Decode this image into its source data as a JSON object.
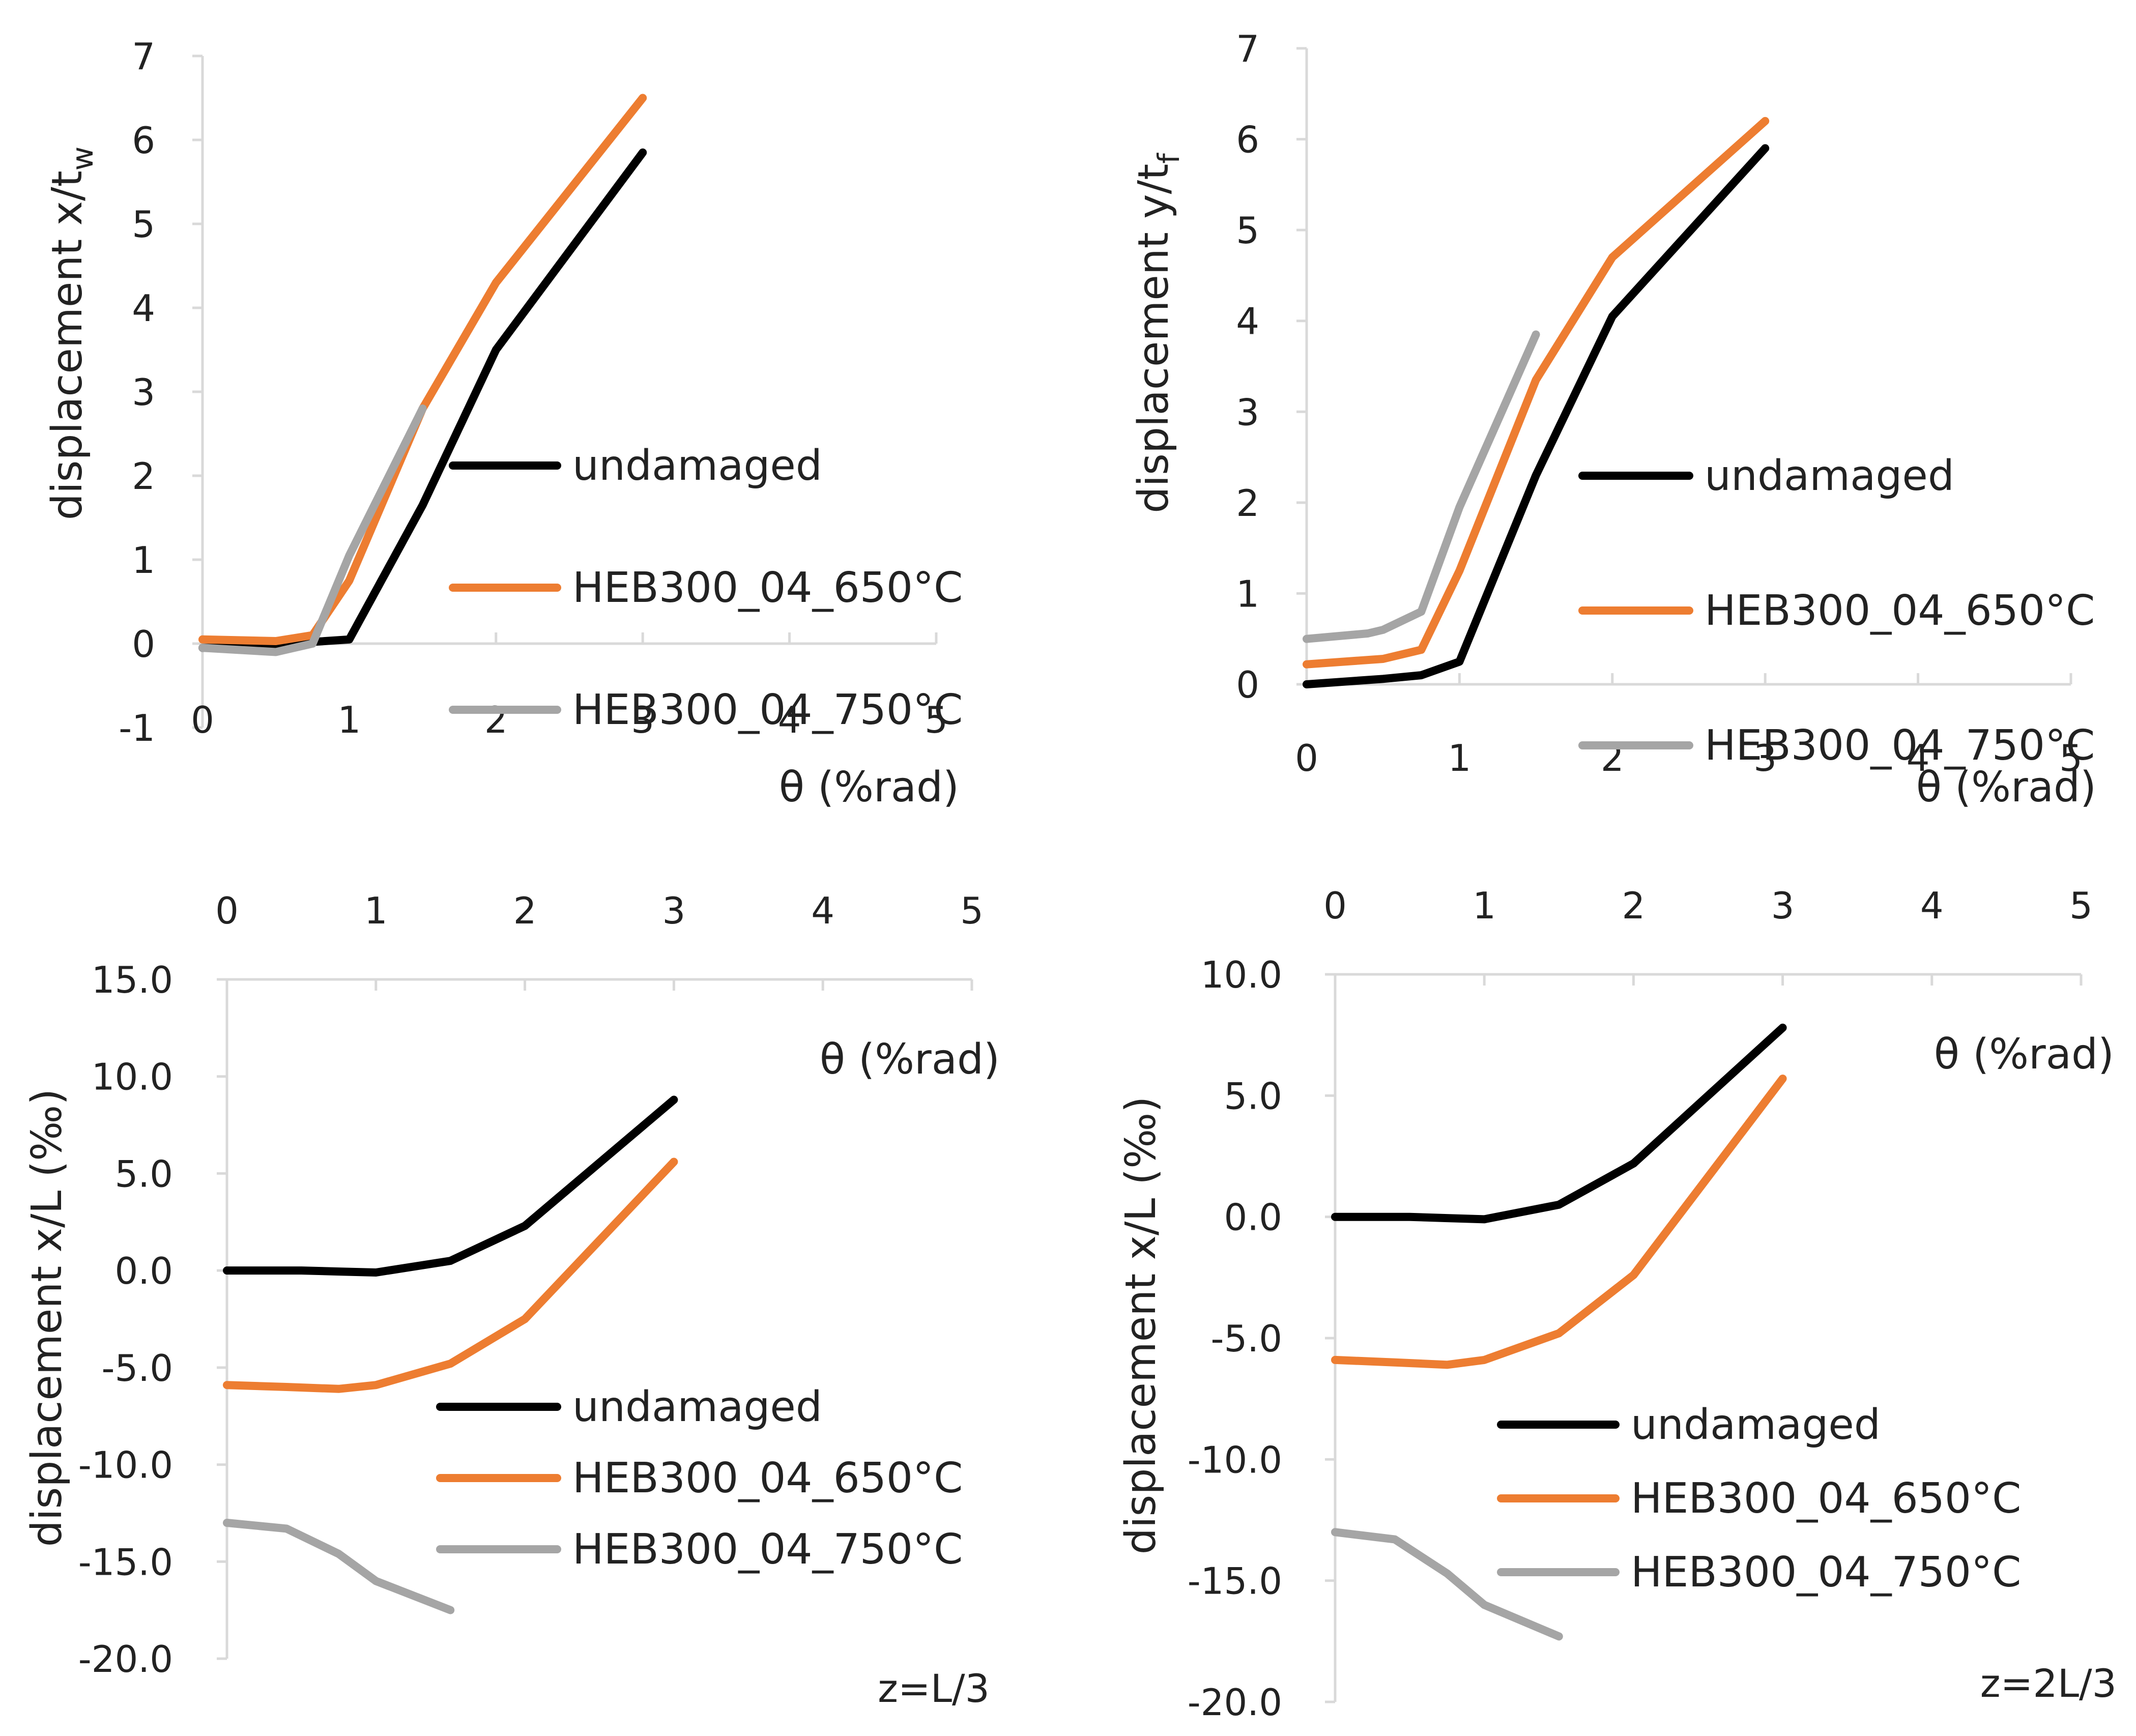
{
  "colors": {
    "undamaged": "#000000",
    "c650": "#ED7D31",
    "c750": "#A5A5A5",
    "axis": "#D9D9D9"
  },
  "chart_data": [
    {
      "type": "line",
      "position": "top-left",
      "xlabel": "θ (%rad)",
      "ylabel_main": "displacement x/t",
      "ylabel_sub": "w",
      "xlim": [
        0,
        5
      ],
      "ylim": [
        -1,
        7
      ],
      "xticks": [
        "0",
        "1",
        "2",
        "3",
        "4",
        "5"
      ],
      "yticks": [
        "-1",
        "0",
        "1",
        "2",
        "3",
        "4",
        "5",
        "6",
        "7"
      ],
      "x_axis_at": 0,
      "legend": [
        "undamaged",
        "HEB300_04_650°C",
        "HEB300_04_750°C"
      ],
      "series": [
        {
          "name": "undamaged",
          "color": "#000000",
          "x": [
            0,
            0.5,
            0.75,
            1,
            1.5,
            2,
            3
          ],
          "y": [
            -0.05,
            -0.05,
            0.02,
            0.05,
            1.65,
            3.5,
            5.85
          ]
        },
        {
          "name": "HEB300_04_650°C",
          "color": "#ED7D31",
          "x": [
            0,
            0.5,
            0.75,
            1,
            1.5,
            2,
            3
          ],
          "y": [
            0.05,
            0.03,
            0.1,
            0.75,
            2.8,
            4.3,
            6.5
          ]
        },
        {
          "name": "HEB300_04_750°C",
          "color": "#A5A5A5",
          "x": [
            0,
            0.5,
            0.75,
            1,
            1.5
          ],
          "y": [
            -0.05,
            -0.1,
            0,
            1.05,
            2.8
          ]
        }
      ]
    },
    {
      "type": "line",
      "position": "top-right",
      "xlabel": "θ (%rad)",
      "ylabel_main": "displacement y/t",
      "ylabel_sub": "f",
      "xlim": [
        0,
        5
      ],
      "ylim": [
        0,
        7
      ],
      "xticks": [
        "0",
        "1",
        "2",
        "3",
        "4",
        "5"
      ],
      "yticks": [
        "0",
        "1",
        "2",
        "3",
        "4",
        "5",
        "6",
        "7"
      ],
      "x_axis_at": 0,
      "legend": [
        "undamaged",
        "HEB300_04_650°C",
        "HEB300_04_750°C"
      ],
      "series": [
        {
          "name": "undamaged",
          "color": "#000000",
          "x": [
            0,
            0.5,
            0.75,
            1,
            1.5,
            2,
            3
          ],
          "y": [
            0,
            0.06,
            0.1,
            0.25,
            2.3,
            4.05,
            5.9
          ]
        },
        {
          "name": "HEB300_04_650°C",
          "color": "#ED7D31",
          "x": [
            0,
            0.5,
            0.75,
            1,
            1.5,
            2,
            3
          ],
          "y": [
            0.22,
            0.28,
            0.38,
            1.25,
            3.35,
            4.7,
            6.2
          ]
        },
        {
          "name": "HEB300_04_750°C",
          "color": "#A5A5A5",
          "x": [
            0,
            0.4,
            0.5,
            0.75,
            1,
            1.5
          ],
          "y": [
            0.5,
            0.56,
            0.6,
            0.8,
            1.95,
            3.85
          ]
        }
      ]
    },
    {
      "type": "line",
      "position": "bottom-left",
      "xlabel": "θ (%rad)",
      "ylabel_main": "displacement x/L (‰)",
      "annotation": "z=L/3",
      "xlim": [
        0,
        5
      ],
      "ylim": [
        -20,
        15
      ],
      "xticks": [
        "0",
        "1",
        "2",
        "3",
        "4",
        "5"
      ],
      "yticks": [
        "-20.0",
        "-15.0",
        "-10.0",
        "-5.0",
        "0.0",
        "5.0",
        "10.0",
        "15.0"
      ],
      "x_axis_at": 15,
      "legend": [
        "undamaged",
        "HEB300_04_650°C",
        "HEB300_04_750°C"
      ],
      "series": [
        {
          "name": "undamaged",
          "color": "#000000",
          "x": [
            0,
            0.5,
            0.75,
            1,
            1.5,
            2,
            3
          ],
          "y": [
            0,
            0,
            -0.05,
            -0.1,
            0.5,
            2.3,
            8.8
          ]
        },
        {
          "name": "HEB300_04_650°C",
          "color": "#ED7D31",
          "x": [
            0,
            0.4,
            0.75,
            1,
            1.5,
            2,
            3
          ],
          "y": [
            -5.9,
            -6,
            -6.1,
            -5.9,
            -4.8,
            -2.5,
            5.6
          ]
        },
        {
          "name": "HEB300_04_750°C",
          "color": "#A5A5A5",
          "x": [
            0,
            0.4,
            0.75,
            1,
            1.5
          ],
          "y": [
            -13,
            -13.3,
            -14.6,
            -16,
            -17.5
          ]
        }
      ]
    },
    {
      "type": "line",
      "position": "bottom-right",
      "xlabel": "θ (%rad)",
      "ylabel_main": "displacement x/L (‰)",
      "annotation": "z=2L/3",
      "xlim": [
        0,
        5
      ],
      "ylim": [
        -20,
        10
      ],
      "xticks": [
        "0",
        "1",
        "2",
        "3",
        "4",
        "5"
      ],
      "yticks": [
        "-20.0",
        "-15.0",
        "-10.0",
        "-5.0",
        "0.0",
        "5.0",
        "10.0"
      ],
      "x_axis_at": 10,
      "legend": [
        "undamaged",
        "HEB300_04_650°C",
        "HEB300_04_750°C"
      ],
      "series": [
        {
          "name": "undamaged",
          "color": "#000000",
          "x": [
            0,
            0.5,
            0.75,
            1,
            1.5,
            2,
            3
          ],
          "y": [
            0,
            0,
            -0.05,
            -0.1,
            0.5,
            2.2,
            7.8
          ]
        },
        {
          "name": "HEB300_04_650°C",
          "color": "#ED7D31",
          "x": [
            0,
            0.4,
            0.75,
            1,
            1.5,
            2,
            3
          ],
          "y": [
            -5.9,
            -6,
            -6.1,
            -5.9,
            -4.8,
            -2.4,
            5.7
          ]
        },
        {
          "name": "HEB300_04_750°C",
          "color": "#A5A5A5",
          "x": [
            0,
            0.4,
            0.75,
            1,
            1.5
          ],
          "y": [
            -13,
            -13.3,
            -14.7,
            -16,
            -17.3
          ]
        }
      ]
    }
  ]
}
